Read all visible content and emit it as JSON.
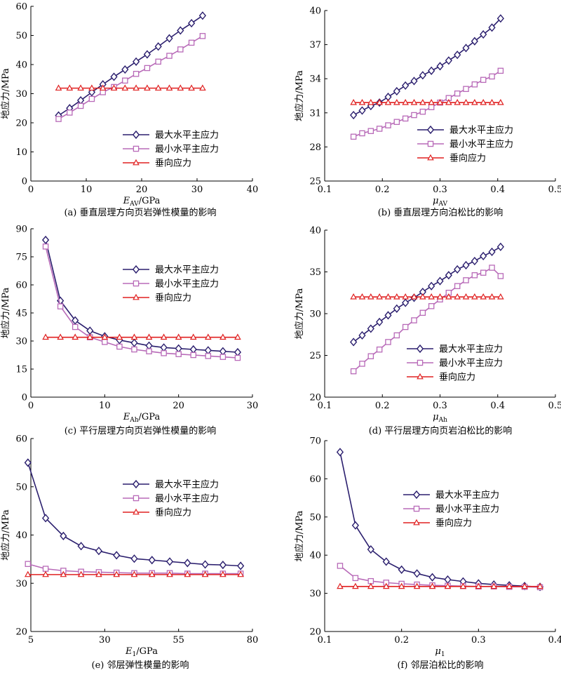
{
  "figure_colors": {
    "max": "#2b1f6e",
    "min": "#b86ab8",
    "vert": "#e02020"
  },
  "charts": [
    {
      "xlabel_main": "E",
      "xlabel_sub": "AV",
      "xlabel_unit": "/GPa",
      "ylabel": "地应力/MPa",
      "caption": "(a) 垂直层理方向页岩弹性模量的影响",
      "legend": [
        "最大水平主应力",
        "最小水平主应力",
        "垂向应力"
      ]
    },
    {
      "xlabel_main": "μ",
      "xlabel_sub": "AV",
      "xlabel_unit": "",
      "ylabel": "地应力/MPa",
      "caption": "(b) 垂直层理方向泊松比的影响",
      "legend": [
        "最大水平主应力",
        "最小水平主应力",
        "垂向应力"
      ]
    },
    {
      "xlabel_main": "E",
      "xlabel_sub": "Ah",
      "xlabel_unit": "/GPa",
      "ylabel": "地应力/MPa",
      "caption": "(c) 平行层理方向页岩弹性模量的影响",
      "legend": [
        "最大水平主应力",
        "最小水平主应力",
        "垂向应力"
      ]
    },
    {
      "xlabel_main": "μ",
      "xlabel_sub": "Ah",
      "xlabel_unit": "",
      "ylabel": "地应力/MPa",
      "caption": "(d) 平行层理方向页岩泊松比的影响",
      "legend": [
        "最大水平主应力",
        "最小水平主应力",
        "垂向应力"
      ]
    },
    {
      "xlabel_main": "E",
      "xlabel_sub": "1",
      "xlabel_unit": "/GPa",
      "ylabel": "地应力/MPa",
      "caption": "(e) 邻层弹性模量的影响",
      "legend": [
        "最大水平主应力",
        "最小水平主应力",
        "垂向应力"
      ]
    },
    {
      "xlabel_main": "μ",
      "xlabel_sub": "1",
      "xlabel_unit": "",
      "ylabel": "地应力/MPa",
      "caption": "(f) 邻层泊松比的影响",
      "legend": [
        "最大水平主应力",
        "最小水平主应力",
        "垂向应力"
      ]
    }
  ],
  "chart_data": [
    {
      "type": "line",
      "xlim": [
        0,
        40
      ],
      "ylim": [
        0,
        60
      ],
      "xticks": [
        0,
        10,
        20,
        30,
        40
      ],
      "yticks": [
        0,
        10,
        20,
        30,
        40,
        50,
        60
      ],
      "legend_position": "bottom-right",
      "series": [
        {
          "name": "最大水平主应力",
          "marker": "diamond",
          "x": [
            5,
            7,
            9,
            11,
            13,
            15,
            17,
            19,
            21,
            23,
            25,
            27,
            29,
            31
          ],
          "y": [
            22.5,
            25,
            27.7,
            30.5,
            33.2,
            35.8,
            38.3,
            41,
            43.5,
            46.2,
            49,
            51.7,
            54.2,
            56.8
          ]
        },
        {
          "name": "最小水平主应力",
          "marker": "square",
          "x": [
            5,
            7,
            9,
            11,
            13,
            15,
            17,
            19,
            21,
            23,
            25,
            27,
            29,
            31
          ],
          "y": [
            21.3,
            23.5,
            25.8,
            28.2,
            30.5,
            32.3,
            34.5,
            36.8,
            38.8,
            41,
            43,
            45.2,
            47.5,
            49.8
          ]
        },
        {
          "name": "垂向应力",
          "marker": "triangle",
          "x": [
            5,
            7,
            9,
            11,
            13,
            15,
            17,
            19,
            21,
            23,
            25,
            27,
            29,
            31
          ],
          "y": [
            31.9,
            31.9,
            31.9,
            31.9,
            31.9,
            31.9,
            31.9,
            31.9,
            31.9,
            31.9,
            31.9,
            31.9,
            31.9,
            31.9
          ]
        }
      ]
    },
    {
      "type": "line",
      "xlim": [
        0.1,
        0.5
      ],
      "ylim": [
        25,
        40
      ],
      "xticks": [
        0.1,
        0.2,
        0.3,
        0.4,
        0.5
      ],
      "yticks": [
        25,
        28,
        31,
        34,
        37,
        40
      ],
      "legend_position": "bottom-right",
      "series": [
        {
          "name": "最大水平主应力",
          "marker": "diamond",
          "x": [
            0.15,
            0.165,
            0.18,
            0.195,
            0.21,
            0.225,
            0.24,
            0.255,
            0.27,
            0.285,
            0.3,
            0.315,
            0.33,
            0.345,
            0.36,
            0.375,
            0.39,
            0.405
          ],
          "y": [
            30.8,
            31.2,
            31.6,
            31.9,
            32.4,
            32.9,
            33.4,
            33.8,
            34.3,
            34.7,
            35.1,
            35.6,
            36.1,
            36.7,
            37.3,
            37.9,
            38.5,
            39.3
          ]
        },
        {
          "name": "最小水平主应力",
          "marker": "square",
          "x": [
            0.15,
            0.165,
            0.18,
            0.195,
            0.21,
            0.225,
            0.24,
            0.255,
            0.27,
            0.285,
            0.3,
            0.315,
            0.33,
            0.345,
            0.36,
            0.375,
            0.39,
            0.405
          ],
          "y": [
            28.9,
            29.2,
            29.4,
            29.6,
            29.9,
            30.2,
            30.5,
            30.8,
            31.1,
            31.5,
            31.9,
            32.3,
            32.7,
            33.1,
            33.5,
            33.9,
            34.2,
            34.7
          ]
        },
        {
          "name": "垂向应力",
          "marker": "triangle",
          "x": [
            0.15,
            0.165,
            0.18,
            0.195,
            0.21,
            0.225,
            0.24,
            0.255,
            0.27,
            0.285,
            0.3,
            0.315,
            0.33,
            0.345,
            0.36,
            0.375,
            0.39,
            0.405
          ],
          "y": [
            31.9,
            31.9,
            31.9,
            31.9,
            31.9,
            31.9,
            31.9,
            31.9,
            31.9,
            31.9,
            31.9,
            31.9,
            31.9,
            31.9,
            31.9,
            31.9,
            31.9,
            31.9
          ]
        }
      ]
    },
    {
      "type": "line",
      "xlim": [
        0,
        30
      ],
      "ylim": [
        0,
        90
      ],
      "xticks": [
        0,
        10,
        20,
        30
      ],
      "yticks": [
        0,
        15,
        30,
        45,
        60,
        75,
        90
      ],
      "legend_position": "top-right",
      "series": [
        {
          "name": "最大水平主应力",
          "marker": "diamond",
          "x": [
            2,
            4,
            6,
            8,
            10,
            12,
            14,
            16,
            18,
            20,
            22,
            24,
            26,
            28
          ],
          "y": [
            84,
            51.5,
            41,
            35.5,
            32.5,
            30.5,
            29,
            27.5,
            26.5,
            26,
            25.5,
            25,
            24.5,
            24
          ]
        },
        {
          "name": "最小水平主应力",
          "marker": "square",
          "x": [
            2,
            4,
            6,
            8,
            10,
            12,
            14,
            16,
            18,
            20,
            22,
            24,
            26,
            28
          ],
          "y": [
            80.5,
            48.5,
            37.5,
            32,
            29.5,
            27,
            25.5,
            24.5,
            23.5,
            23,
            22.5,
            22,
            21.5,
            21
          ]
        },
        {
          "name": "垂向应力",
          "marker": "triangle",
          "x": [
            2,
            4,
            6,
            8,
            10,
            12,
            14,
            16,
            18,
            20,
            22,
            24,
            26,
            28
          ],
          "y": [
            32,
            32,
            32,
            32,
            32,
            32,
            32,
            32,
            32,
            32,
            32,
            32,
            32,
            32
          ]
        }
      ]
    },
    {
      "type": "line",
      "xlim": [
        0.1,
        0.5
      ],
      "ylim": [
        20,
        40
      ],
      "xticks": [
        0.1,
        0.2,
        0.3,
        0.4,
        0.5
      ],
      "yticks": [
        20,
        25,
        30,
        35,
        40
      ],
      "legend_position": "bottom-right",
      "series": [
        {
          "name": "最大水平主应力",
          "marker": "diamond",
          "x": [
            0.15,
            0.165,
            0.18,
            0.195,
            0.21,
            0.225,
            0.24,
            0.255,
            0.27,
            0.285,
            0.3,
            0.315,
            0.33,
            0.345,
            0.36,
            0.375,
            0.39,
            0.405
          ],
          "y": [
            26.6,
            27.4,
            28.2,
            29.0,
            29.8,
            30.6,
            31.3,
            31.9,
            32.6,
            33.3,
            33.9,
            34.6,
            35.3,
            35.8,
            36.3,
            36.9,
            37.4,
            38.0
          ]
        },
        {
          "name": "最小水平主应力",
          "marker": "square",
          "x": [
            0.15,
            0.165,
            0.18,
            0.195,
            0.21,
            0.225,
            0.24,
            0.255,
            0.27,
            0.285,
            0.3,
            0.315,
            0.33,
            0.345,
            0.36,
            0.375,
            0.39,
            0.405
          ],
          "y": [
            23.1,
            24.0,
            24.9,
            25.7,
            26.6,
            27.4,
            28.4,
            29.2,
            30.1,
            30.9,
            31.7,
            32.5,
            33.3,
            34.0,
            34.6,
            34.9,
            35.5,
            34.5
          ]
        },
        {
          "name": "垂向应力",
          "marker": "triangle",
          "x": [
            0.15,
            0.165,
            0.18,
            0.195,
            0.21,
            0.225,
            0.24,
            0.255,
            0.27,
            0.285,
            0.3,
            0.315,
            0.33,
            0.345,
            0.36,
            0.375,
            0.39,
            0.405
          ],
          "y": [
            32,
            32,
            32,
            32,
            32,
            32,
            32,
            32,
            32,
            32,
            32,
            32,
            32,
            32,
            32,
            32,
            32,
            32
          ]
        }
      ]
    },
    {
      "type": "line",
      "xlim": [
        5,
        80
      ],
      "ylim": [
        20,
        60
      ],
      "xticks": [
        5,
        30,
        55,
        80
      ],
      "yticks": [
        20,
        30,
        40,
        50,
        60
      ],
      "legend_position": "top-right",
      "series": [
        {
          "name": "最大水平主应力",
          "marker": "diamond",
          "x": [
            4,
            10,
            16,
            22,
            28,
            34,
            40,
            46,
            52,
            58,
            64,
            70,
            76
          ],
          "y": [
            55,
            43.5,
            39.8,
            37.7,
            36.7,
            35.8,
            35.1,
            34.8,
            34.5,
            34.2,
            33.9,
            33.8,
            33.6
          ]
        },
        {
          "name": "最小水平主应力",
          "marker": "square",
          "x": [
            4,
            10,
            16,
            22,
            28,
            34,
            40,
            46,
            52,
            58,
            64,
            70,
            76
          ],
          "y": [
            34,
            33,
            32.6,
            32.4,
            32.3,
            32.2,
            32.1,
            32.1,
            32.1,
            32,
            32,
            32,
            32
          ]
        },
        {
          "name": "垂向应力",
          "marker": "triangle",
          "x": [
            4,
            10,
            16,
            22,
            28,
            34,
            40,
            46,
            52,
            58,
            64,
            70,
            76
          ],
          "y": [
            31.8,
            31.8,
            31.8,
            31.8,
            31.8,
            31.8,
            31.8,
            31.8,
            31.8,
            31.8,
            31.8,
            31.8,
            31.8
          ]
        }
      ]
    },
    {
      "type": "line",
      "xlim": [
        0.1,
        0.4
      ],
      "ylim": [
        20,
        70
      ],
      "xticks": [
        0.1,
        0.2,
        0.3,
        0.4
      ],
      "yticks": [
        20,
        30,
        40,
        50,
        60,
        70
      ],
      "legend_position": "top-right",
      "series": [
        {
          "name": "最大水平主应力",
          "marker": "diamond",
          "x": [
            0.12,
            0.14,
            0.16,
            0.18,
            0.2,
            0.22,
            0.24,
            0.26,
            0.28,
            0.3,
            0.32,
            0.34,
            0.36,
            0.38
          ],
          "y": [
            67,
            47.8,
            41.5,
            38.3,
            36.2,
            35.2,
            34.2,
            33.6,
            33.1,
            32.6,
            32.3,
            32.1,
            31.9,
            31.7
          ]
        },
        {
          "name": "最小水平主应力",
          "marker": "square",
          "x": [
            0.12,
            0.14,
            0.16,
            0.18,
            0.2,
            0.22,
            0.24,
            0.26,
            0.28,
            0.3,
            0.32,
            0.34,
            0.36,
            0.38
          ],
          "y": [
            37.2,
            34,
            33.2,
            32.8,
            32.5,
            32.3,
            32.1,
            32,
            31.9,
            31.8,
            31.8,
            31.7,
            31.7,
            31.6
          ]
        },
        {
          "name": "垂向应力",
          "marker": "triangle",
          "x": [
            0.12,
            0.14,
            0.16,
            0.18,
            0.2,
            0.22,
            0.24,
            0.26,
            0.28,
            0.3,
            0.32,
            0.34,
            0.36,
            0.38
          ],
          "y": [
            31.8,
            31.8,
            31.8,
            31.8,
            31.8,
            31.8,
            31.8,
            31.8,
            31.8,
            31.8,
            31.8,
            31.8,
            31.8,
            31.8
          ]
        }
      ]
    }
  ]
}
